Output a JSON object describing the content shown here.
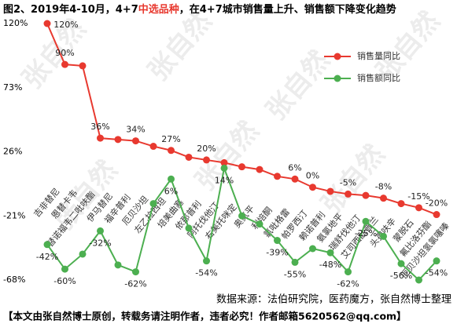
{
  "chart_data": {
    "type": "line",
    "title_parts": [
      "图2、2019年4-10月，4+7",
      "中选品种",
      "，在4+7城市销售量上升、销售额下降变化趋势"
    ],
    "title_colors": [
      "#000000",
      "#e8392f",
      "#000000"
    ],
    "source": "数据来源：法伯研究院，医药魔方，张自然博士整理",
    "footer": "【本文由张自然博士原创，转载务请注明作者，违者必究！作者邮箱5620562@qq.com】",
    "watermark": "张自然",
    "categories": [
      "吉非替尼",
      "恩替卡韦",
      "替诺福韦二吡呋酯",
      "伊马替尼",
      "福辛普利",
      "厄贝沙坦",
      "左乙拉西坦",
      "培美曲塞",
      "依那普利",
      "阿托伐他汀",
      "右美托咪定",
      "奥氮平",
      "利培酮",
      "氯吡格雷",
      "帕罗西汀",
      "赖诺普利",
      "氨氯地平",
      "瑞舒伐他汀",
      "艾司西酞普兰",
      "头孢呋辛",
      "蒙脱石",
      "氟比洛芬酯",
      "厄贝沙坦氢氯噻嗪"
    ],
    "series": [
      {
        "name": "销售量同比",
        "color": "#e8392f",
        "values": [
          120,
          90,
          89,
          36,
          35,
          34,
          30,
          27,
          22,
          20,
          18,
          15,
          13,
          8,
          6,
          0,
          -3,
          -5,
          -6,
          -8,
          -12,
          -15,
          -20
        ],
        "value_labels": [
          "120%",
          "90%",
          null,
          "36%",
          null,
          "34%",
          null,
          "27%",
          null,
          "20%",
          null,
          null,
          null,
          null,
          "6%",
          "0%",
          null,
          "-5%",
          null,
          "-8%",
          null,
          "-15%",
          "-20%"
        ]
      },
      {
        "name": "销售额同比",
        "color": "#4caf50",
        "values": [
          -42,
          -60,
          -49,
          -32,
          -57,
          -62,
          -12,
          6,
          -30,
          -54,
          14,
          -21,
          -27,
          -39,
          -55,
          -45,
          -48,
          -62,
          -25,
          -36,
          -56,
          -68,
          -54
        ],
        "value_labels": [
          "-42%",
          "-60%",
          null,
          "-32%",
          null,
          "-62%",
          null,
          "6%",
          null,
          "-54%",
          "14%",
          null,
          null,
          "-39%",
          "-55%",
          null,
          "-48%",
          "-62%",
          "-25%",
          null,
          "-56%",
          null,
          "-54%"
        ]
      }
    ],
    "ylim": [
      -68,
      120
    ],
    "yticks": [
      {
        "value": 120,
        "label": "120%"
      },
      {
        "value": 73,
        "label": "73%"
      },
      {
        "value": 26,
        "label": "26%"
      },
      {
        "value": -21,
        "label": "-21%"
      },
      {
        "value": -68,
        "label": "-68%"
      }
    ],
    "grid": false,
    "legend": "top-right"
  }
}
